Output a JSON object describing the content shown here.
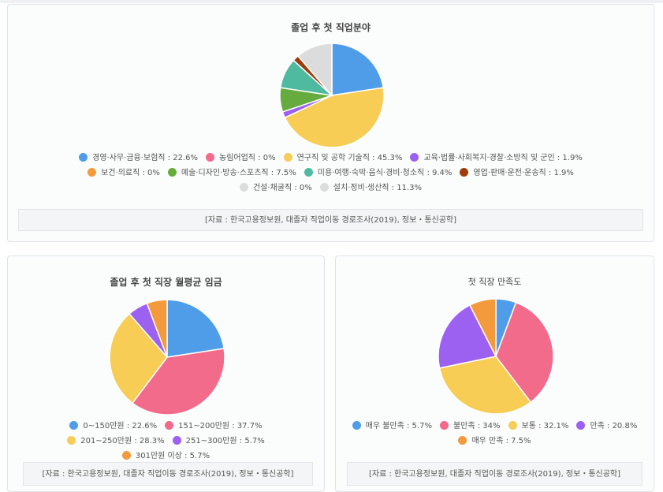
{
  "chart_data": [
    {
      "type": "pie",
      "title": "졸업 후 첫 직업분야",
      "categories": [
        "경영·사무·금융·보험직",
        "농림어업직",
        "연구직 및 공학 기술직",
        "교육·법률·사회복지·경찰·소방직 및 군인",
        "보건·의료직",
        "예술·디자인·방송·스포츠직",
        "미용·여행·숙박·음식·경비·청소직",
        "영업·판매·운전·운송직",
        "건설·채굴직",
        "설치·정비·생산직"
      ],
      "values": [
        22.6,
        0,
        45.3,
        1.9,
        0,
        7.5,
        9.4,
        1.9,
        0,
        11.3
      ],
      "colors": [
        "#4f9de9",
        "#f36b8b",
        "#f7cd55",
        "#9d61f2",
        "#f39b3c",
        "#66ab3d",
        "#4fba9f",
        "#9c3d0c",
        "#d9d9d9",
        "#dcdcdc"
      ],
      "legend_text": [
        "경영·사무·금융·보험직 : 22.6%",
        "농림어업직 : 0%",
        "연구직 및 공학 기술직 : 45.3%",
        "교육·법률·사회복지·경찰·소방직 및 군인 : 1.9%",
        "보건·의료직 : 0%",
        "예술·디자인·방송·스포츠직 : 7.5%",
        "미용·여행·숙박·음식·경비·청소직 : 9.4%",
        "영업·판매·운전·운송직 : 1.9%",
        "건설·채굴직 : 0%",
        "설치·정비·생산직 : 11.3%"
      ],
      "legend_colors": [
        "#4f9de9",
        "#f36b8b",
        "#f7cd55",
        "#9d61f2",
        "#f39b3c",
        "#66ab3d",
        "#4fba9f",
        "#9c3d0c",
        "#dcdcdc",
        "#dcdcdc"
      ],
      "source": "[자료 : 한국고용정보원, 대졸자 직업이동 경로조사(2019), 정보・통신공학]"
    },
    {
      "type": "pie",
      "title": "졸업 후 첫 직장 월평균 임금",
      "categories": [
        "0~150만원",
        "151~200만원",
        "201~250만원",
        "251~300만원",
        "301만원 이상"
      ],
      "values": [
        22.6,
        37.7,
        28.3,
        5.7,
        5.7
      ],
      "colors": [
        "#4f9de9",
        "#f36b8b",
        "#f7cd55",
        "#9d61f2",
        "#f39b3c"
      ],
      "legend_text": [
        "0~150만원 : 22.6%",
        "151~200만원 : 37.7%",
        "201~250만원 : 28.3%",
        "251~300만원 : 5.7%",
        "301만원 이상 : 5.7%"
      ],
      "legend_colors": [
        "#4f9de9",
        "#f36b8b",
        "#f7cd55",
        "#9d61f2",
        "#f39b3c"
      ],
      "source": "[자료 : 한국고용정보원, 대졸자 직업이동 경로조사(2019), 정보・통신공학]"
    },
    {
      "type": "pie",
      "title": "첫 직장 만족도",
      "categories": [
        "매우 불만족",
        "불만족",
        "보통",
        "만족",
        "매우 만족"
      ],
      "values": [
        5.7,
        34,
        32.1,
        20.8,
        7.5
      ],
      "colors": [
        "#4f9de9",
        "#f36b8b",
        "#f7cd55",
        "#9d61f2",
        "#f39b3c"
      ],
      "legend_text": [
        "매우 불만족 : 5.7%",
        "불만족 : 34%",
        "보통 : 32.1%",
        "만족 : 20.8%",
        "매우 만족 : 7.5%"
      ],
      "legend_colors": [
        "#4f9de9",
        "#f36b8b",
        "#f7cd55",
        "#9d61f2",
        "#f39b3c"
      ],
      "source": "[자료 : 한국고용정보원, 대졸자 직업이동 경로조사(2019), 정보・통신공학]"
    }
  ]
}
